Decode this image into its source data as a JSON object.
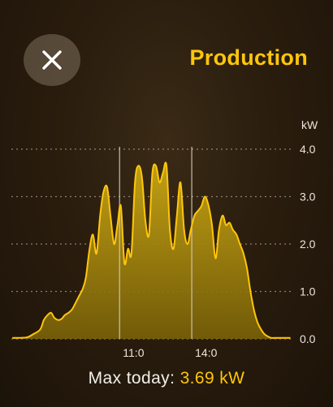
{
  "header": {
    "title": "Production",
    "close_icon": "close-x-icon"
  },
  "colors": {
    "accent": "#ffc60a",
    "fill": "#a88a10",
    "text": "#ece5db"
  },
  "chart_data": {
    "type": "area",
    "title": "",
    "xlabel": "",
    "ylabel": "kW",
    "x_tick_labels": [
      "11:0",
      "14:0"
    ],
    "x_ticks": [
      11,
      14
    ],
    "y_ticks": [
      0,
      1,
      2,
      3,
      4
    ],
    "y_tick_labels": [
      "0.0",
      "1.0",
      "2.0",
      "3.0",
      "4.0"
    ],
    "xlim": [
      6.5,
      18.25
    ],
    "ylim": [
      0,
      4
    ],
    "grid": "dotted-horizontal",
    "x": [
      6.54,
      7.12,
      7.41,
      7.7,
      7.85,
      8.0,
      8.15,
      8.28,
      8.43,
      8.58,
      8.72,
      8.87,
      9.02,
      9.16,
      9.31,
      9.46,
      9.6,
      9.75,
      9.89,
      10.04,
      10.19,
      10.33,
      10.48,
      10.62,
      10.77,
      10.91,
      11.05,
      11.2,
      11.35,
      11.49,
      11.64,
      11.78,
      11.93,
      12.07,
      12.22,
      12.36,
      12.51,
      12.66,
      12.8,
      12.95,
      13.09,
      13.24,
      13.38,
      13.53,
      13.68,
      13.82,
      13.96,
      14.11,
      14.26,
      14.4,
      14.55,
      14.7,
      14.84,
      14.99,
      15.13,
      15.28,
      15.42,
      15.57,
      15.71,
      15.86,
      16.0,
      16.15,
      16.29,
      16.44,
      16.59,
      16.73,
      16.88,
      17.02,
      17.17,
      17.31,
      17.46,
      17.6,
      17.75,
      17.9,
      18.1
    ],
    "values": [
      0.02,
      0.03,
      0.1,
      0.2,
      0.4,
      0.5,
      0.55,
      0.45,
      0.4,
      0.42,
      0.5,
      0.55,
      0.62,
      0.75,
      0.9,
      1.05,
      1.3,
      1.9,
      2.2,
      1.8,
      2.6,
      3.1,
      3.2,
      2.6,
      2.0,
      2.4,
      2.8,
      1.6,
      1.9,
      1.8,
      3.3,
      3.65,
      3.4,
      2.5,
      2.2,
      3.5,
      3.65,
      3.3,
      3.5,
      3.65,
      2.3,
      1.9,
      2.6,
      3.3,
      2.3,
      2.0,
      2.3,
      2.6,
      2.7,
      2.8,
      3.0,
      2.8,
      2.4,
      1.7,
      2.3,
      2.6,
      2.4,
      2.45,
      2.3,
      2.2,
      2.0,
      1.8,
      1.5,
      1.0,
      0.6,
      0.35,
      0.2,
      0.1,
      0.05,
      0.02,
      0.02,
      0.02,
      0.02,
      0.02,
      0.02
    ]
  },
  "footer": {
    "label": "Max today:",
    "value": "3.69 kW"
  }
}
